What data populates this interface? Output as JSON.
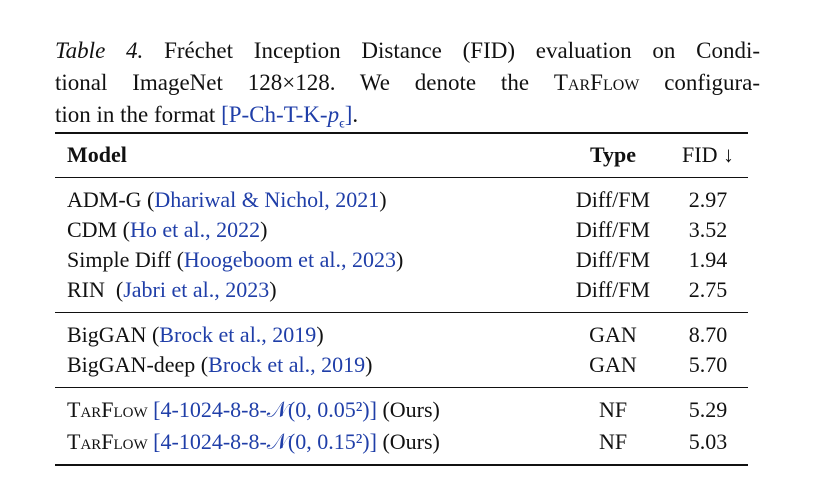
{
  "caption": {
    "label": "Table 4.",
    "line1": "Fréchet Inception Distance (FID) evaluation on Condi-",
    "line2_before": "tional ImageNet 128×128. We denote the ",
    "line2_name": "TarFlow",
    "line2_after": " configura-",
    "line3_before": "tion in the format ",
    "format_open": "[P-Ch-T-K-",
    "format_var": "p",
    "format_sub": "ϵ",
    "format_close": "]",
    "line3_end": "."
  },
  "table": {
    "header": {
      "model": "Model",
      "type": "Type",
      "fid": "FID ↓"
    },
    "groups": [
      [
        {
          "name": "ADM-G (",
          "ref": "Dhariwal & Nichol, 2021",
          "after": ")",
          "type": "Diff/FM",
          "fid": "2.97"
        },
        {
          "name": "CDM (",
          "ref": "Ho et al., 2022",
          "after": ")",
          "type": "Diff/FM",
          "fid": "3.52"
        },
        {
          "name": "Simple Diff (",
          "ref": "Hoogeboom et al., 2023",
          "after": ")",
          "type": "Diff/FM",
          "fid": "1.94"
        },
        {
          "name": "RIN  (",
          "ref": "Jabri et al., 2023",
          "after": ")",
          "type": "Diff/FM",
          "fid": "2.75"
        }
      ],
      [
        {
          "name": "BigGAN (",
          "ref": "Brock et al., 2019",
          "after": ")",
          "type": "GAN",
          "fid": "8.70"
        },
        {
          "name": "BigGAN-deep (",
          "ref": "Brock et al., 2019",
          "after": ")",
          "type": "GAN",
          "fid": "5.70"
        }
      ],
      [
        {
          "name": "TarFlow ",
          "name_style": "small-caps",
          "ref": "[4-1024-8-8-𝒩(0, 0.05²)]",
          "after": " (Ours)",
          "type": "NF",
          "fid": "5.29"
        },
        {
          "name": "TarFlow ",
          "name_style": "small-caps",
          "ref": "[4-1024-8-8-𝒩(0, 0.15²)]",
          "after": " (Ours)",
          "type": "NF",
          "fid": "5.03"
        }
      ]
    ]
  }
}
